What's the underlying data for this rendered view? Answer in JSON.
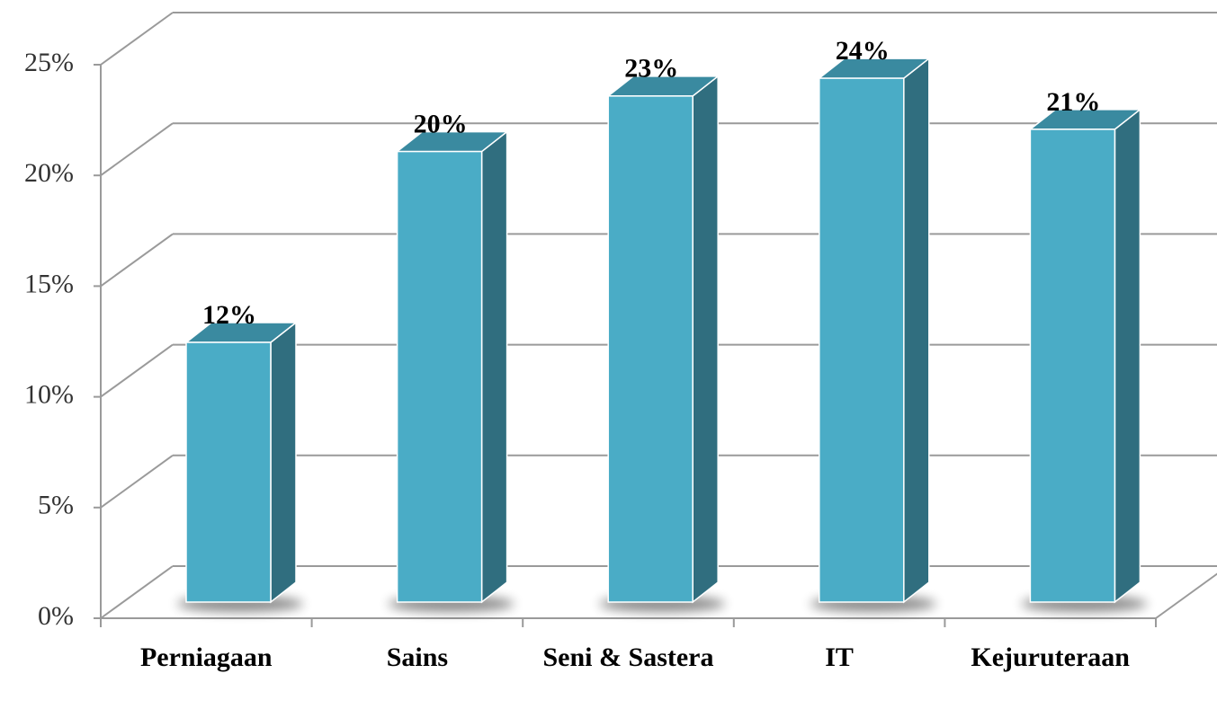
{
  "chart_data": {
    "type": "bar3d",
    "categories": [
      "Perniagaan",
      "Sains",
      "Seni & Sastera",
      "IT",
      "Kejuruteraan"
    ],
    "values": [
      11.7,
      20.3,
      22.8,
      23.6,
      21.3
    ],
    "value_labels": [
      "12%",
      "20%",
      "23%",
      "24%",
      "21%"
    ],
    "color": "#4aacc6",
    "ylim": [
      0,
      25
    ],
    "yticks": [
      {
        "value": 0,
        "label": "0%"
      },
      {
        "value": 5,
        "label": "5%"
      },
      {
        "value": 10,
        "label": "10%"
      },
      {
        "value": 15,
        "label": "15%"
      },
      {
        "value": 20,
        "label": "20%"
      },
      {
        "value": 25,
        "label": "25%"
      }
    ],
    "grid": true
  }
}
